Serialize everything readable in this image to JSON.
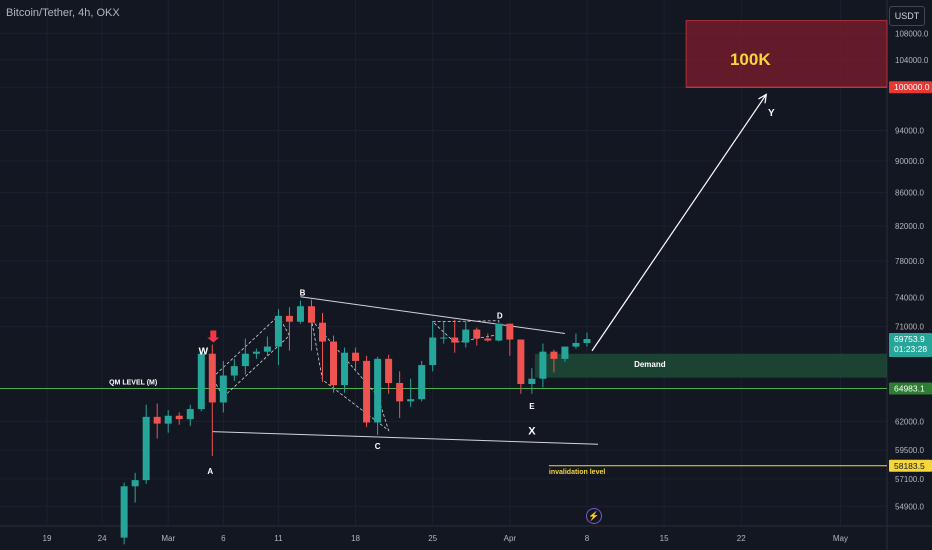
{
  "header": {
    "symbol": "Bitcoin/Tether, 4h, OKX",
    "currency_button": "USDT"
  },
  "annotations": {
    "target_label": "100K",
    "demand_label": "Demand",
    "qm_label": "QM LEVEL (M)",
    "invalidation_label": "invalidation level",
    "wave_letters": [
      "W",
      "A",
      "B",
      "C",
      "D",
      "E",
      "X",
      "Y"
    ]
  },
  "colors": {
    "background": "#131722",
    "up_candle": "#26a69a",
    "down_candle": "#ef5350",
    "target_zone": "#7b1c2c",
    "target_text": "#f5d63c",
    "demand_zone": "#1e4a36",
    "qm_line": "#4caf50",
    "invalidation_line": "#f5d63c",
    "price_badge": "#26a69a",
    "qm_badge": "#2e7d32",
    "target_badge": "#e53935"
  },
  "icons": {
    "alert": "lightning-icon",
    "signal": "down-arrow-icon"
  },
  "chart_data": {
    "type": "candlestick",
    "title": "Bitcoin/Tether, 4h, OKX",
    "x_ticks": [
      "19",
      "24",
      "Mar",
      "6",
      "11",
      "18",
      "25",
      "Apr",
      "8",
      "15",
      "22",
      "May"
    ],
    "y_ticks": [
      "108000.0",
      "104000.0",
      "100000.0",
      "94000.0",
      "90000.0",
      "86000.0",
      "82000.0",
      "78000.0",
      "74000.0",
      "71000.0",
      "62000.0",
      "59500.0",
      "57100.0",
      "54900.0"
    ],
    "y_scale": "log",
    "ylim": [
      53000,
      112000
    ],
    "price_labels": [
      {
        "name": "current",
        "value": "69753.9",
        "countdown": "01:23:28"
      },
      {
        "name": "qm_level",
        "value": "64983.1"
      },
      {
        "name": "target_level",
        "value": "100000.0"
      },
      {
        "name": "invalidation",
        "value": "58183.5"
      }
    ],
    "levels": {
      "qm": 64983.1,
      "invalidation": 58183.5,
      "target_low": 100000,
      "target_high": 110000,
      "demand_low": 66000,
      "demand_high": 68300
    },
    "wave_points": [
      {
        "label": "W",
        "date": "Mar 5",
        "price": 68400
      },
      {
        "label": "A",
        "date": "Mar 5",
        "price": 59000
      },
      {
        "label": "B",
        "date": "Mar 14",
        "price": 73700
      },
      {
        "label": "C",
        "date": "Mar 20",
        "price": 60800
      },
      {
        "label": "D",
        "date": "Mar 31",
        "price": 71200
      },
      {
        "label": "E",
        "date": "Apr 3",
        "price": 64000
      },
      {
        "label": "X",
        "date": "Apr 3",
        "price": 61800
      },
      {
        "label": "Y",
        "date": "Apr 24",
        "price": 96000
      }
    ],
    "triangle_upper": [
      {
        "date": "Mar 13",
        "price": 74100
      },
      {
        "date": "Apr 6",
        "price": 70300
      }
    ],
    "triangle_lower": [
      {
        "date": "Mar 5",
        "price": 61100
      },
      {
        "date": "Apr 9",
        "price": 60000
      }
    ],
    "projection": [
      {
        "date": "Apr 9",
        "price": 67800
      },
      {
        "date": "Apr 24",
        "price": 99400
      }
    ],
    "series": [
      {
        "date": "Feb 26",
        "ohlc": [
          52500,
          56800,
          52000,
          56500
        ]
      },
      {
        "date": "Feb 27",
        "ohlc": [
          56500,
          57600,
          55200,
          57000
        ]
      },
      {
        "date": "Feb 28",
        "ohlc": [
          57000,
          63500,
          56700,
          62400
        ]
      },
      {
        "date": "Feb 29",
        "ohlc": [
          62400,
          63600,
          60500,
          61800
        ]
      },
      {
        "date": "Mar 1",
        "ohlc": [
          61800,
          63000,
          61000,
          62500
        ]
      },
      {
        "date": "Mar 2",
        "ohlc": [
          62500,
          62800,
          61700,
          62200
        ]
      },
      {
        "date": "Mar 3",
        "ohlc": [
          62200,
          63500,
          61600,
          63100
        ]
      },
      {
        "date": "Mar 4",
        "ohlc": [
          63100,
          68500,
          62900,
          68300
        ]
      },
      {
        "date": "Mar 5",
        "ohlc": [
          68300,
          69200,
          59000,
          63700
        ]
      },
      {
        "date": "Mar 6",
        "ohlc": [
          63700,
          67600,
          62800,
          66200
        ]
      },
      {
        "date": "Mar 7",
        "ohlc": [
          66200,
          67800,
          65700,
          67100
        ]
      },
      {
        "date": "Mar 8",
        "ohlc": [
          67100,
          69800,
          66300,
          68300
        ]
      },
      {
        "date": "Mar 9",
        "ohlc": [
          68300,
          68800,
          67800,
          68500
        ]
      },
      {
        "date": "Mar 10",
        "ohlc": [
          68500,
          70000,
          68100,
          69000
        ]
      },
      {
        "date": "Mar 11",
        "ohlc": [
          69000,
          72800,
          67200,
          72100
        ]
      },
      {
        "date": "Mar 12",
        "ohlc": [
          72100,
          73000,
          68600,
          71500
        ]
      },
      {
        "date": "Mar 13",
        "ohlc": [
          71500,
          73700,
          71300,
          73100
        ]
      },
      {
        "date": "Mar 14",
        "ohlc": [
          73100,
          73800,
          68600,
          71400
        ]
      },
      {
        "date": "Mar 15",
        "ohlc": [
          71400,
          72400,
          65600,
          69500
        ]
      },
      {
        "date": "Mar 16",
        "ohlc": [
          69500,
          70100,
          64600,
          65300
        ]
      },
      {
        "date": "Mar 17",
        "ohlc": [
          65300,
          68900,
          64600,
          68400
        ]
      },
      {
        "date": "Mar 18",
        "ohlc": [
          68400,
          68900,
          66600,
          67600
        ]
      },
      {
        "date": "Mar 19",
        "ohlc": [
          67600,
          68100,
          61500,
          61900
        ]
      },
      {
        "date": "Mar 20",
        "ohlc": [
          61900,
          68000,
          60800,
          67800
        ]
      },
      {
        "date": "Mar 21",
        "ohlc": [
          67800,
          68200,
          64500,
          65500
        ]
      },
      {
        "date": "Mar 22",
        "ohlc": [
          65500,
          66600,
          62300,
          63800
        ]
      },
      {
        "date": "Mar 23",
        "ohlc": [
          63800,
          65900,
          63300,
          64000
        ]
      },
      {
        "date": "Mar 24",
        "ohlc": [
          64000,
          67600,
          63800,
          67200
        ]
      },
      {
        "date": "Mar 25",
        "ohlc": [
          67200,
          71500,
          66600,
          69900
        ]
      },
      {
        "date": "Mar 26",
        "ohlc": [
          69900,
          71500,
          69300,
          69900
        ]
      },
      {
        "date": "Mar 27",
        "ohlc": [
          69900,
          71700,
          68400,
          69400
        ]
      },
      {
        "date": "Mar 28",
        "ohlc": [
          69400,
          71500,
          68900,
          70700
        ]
      },
      {
        "date": "Mar 29",
        "ohlc": [
          70700,
          70900,
          69100,
          69800
        ]
      },
      {
        "date": "Mar 30",
        "ohlc": [
          69800,
          70300,
          69500,
          69600
        ]
      },
      {
        "date": "Mar 31",
        "ohlc": [
          69600,
          71300,
          69500,
          71300
        ]
      },
      {
        "date": "Apr 1",
        "ohlc": [
          71300,
          71300,
          68100,
          69700
        ]
      },
      {
        "date": "Apr 2",
        "ohlc": [
          69700,
          69700,
          64500,
          65400
        ]
      },
      {
        "date": "Apr 3",
        "ohlc": [
          65400,
          66900,
          64500,
          65900
        ]
      },
      {
        "date": "Apr 4",
        "ohlc": [
          65900,
          69300,
          65100,
          68500
        ]
      },
      {
        "date": "Apr 5",
        "ohlc": [
          68500,
          68700,
          66500,
          67800
        ]
      },
      {
        "date": "Apr 6",
        "ohlc": [
          67800,
          69000,
          67500,
          69000
        ]
      },
      {
        "date": "Apr 7",
        "ohlc": [
          69000,
          70300,
          68800,
          69360
        ]
      },
      {
        "date": "Apr 8",
        "ohlc": [
          69360,
          70400,
          69000,
          69750
        ]
      }
    ]
  }
}
